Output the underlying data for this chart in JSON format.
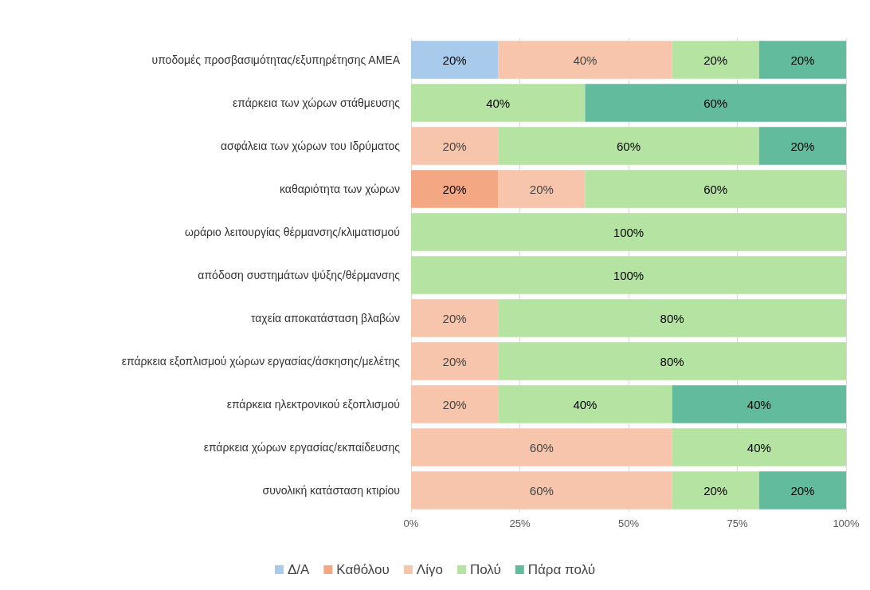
{
  "chart_data": {
    "type": "bar",
    "orientation": "horizontal",
    "stacked": true,
    "categories": [
      "υποδομές προσβασιμότητας/εξυπηρέτησης ΑΜΕΑ",
      "επάρκεια των χώρων στάθμευσης",
      "ασφάλεια των χώρων του Ιδρύματος",
      "καθαριότητα των χώρων",
      "ωράριο λειτουργίας θέρμανσης/κλιματισμού",
      "απόδοση συστημάτων ψύξης/θέρμανσης",
      "ταχεία αποκατάσταση βλαβών",
      "επάρκεια εξοπλισμού χώρων εργασίας/άσκησης/μελέτης",
      "επάρκεια ηλεκτρονικού εξοπλισμού",
      "επάρκεια χώρων εργασίας/εκπαίδευσης",
      "συνολική κατάσταση κτιρίου"
    ],
    "series": [
      {
        "name": "Δ/Α",
        "color": "#a8caeb",
        "values": [
          20,
          null,
          null,
          null,
          null,
          null,
          null,
          null,
          null,
          null,
          null
        ],
        "value_labels": [
          "20%",
          null,
          null,
          null,
          null,
          null,
          null,
          null,
          null,
          null,
          null
        ]
      },
      {
        "name": "Καθόλου",
        "color": "#f3a782",
        "values": [
          null,
          null,
          null,
          20,
          null,
          null,
          null,
          null,
          null,
          null,
          null
        ],
        "value_labels": [
          null,
          null,
          null,
          "20%",
          null,
          null,
          null,
          null,
          null,
          null,
          null
        ]
      },
      {
        "name": "Λίγο",
        "color": "#f7c5ab",
        "values": [
          40,
          null,
          20,
          20,
          null,
          null,
          20,
          20,
          20,
          60,
          60
        ],
        "value_labels": [
          "40%",
          null,
          "20%",
          "20%",
          null,
          null,
          "20%",
          "20%",
          "20%",
          "60%",
          "60%"
        ]
      },
      {
        "name": "Πολύ",
        "color": "#b5e3a2",
        "values": [
          20,
          40,
          60,
          60,
          100,
          100,
          80,
          80,
          40,
          40,
          20
        ],
        "value_labels": [
          "20%",
          "40%",
          "60%",
          "60%",
          "100%",
          "100%",
          "80%",
          "80%",
          "40%",
          "40%",
          "20%"
        ]
      },
      {
        "name": "Πάρα πολύ",
        "color": "#62bb9d",
        "values": [
          20,
          60,
          20,
          null,
          null,
          null,
          null,
          null,
          40,
          null,
          20
        ],
        "value_labels": [
          "20%",
          "60%",
          "20%",
          null,
          null,
          null,
          null,
          null,
          "40%",
          null,
          "20%"
        ]
      }
    ],
    "xlim": [
      0,
      100
    ],
    "xticks": [
      {
        "value": 0,
        "label": "0%"
      },
      {
        "value": 25,
        "label": "25%"
      },
      {
        "value": 50,
        "label": "50%"
      },
      {
        "value": 75,
        "label": "75%"
      },
      {
        "value": 100,
        "label": "100%"
      }
    ],
    "grid": "x",
    "legend": "bottom"
  }
}
